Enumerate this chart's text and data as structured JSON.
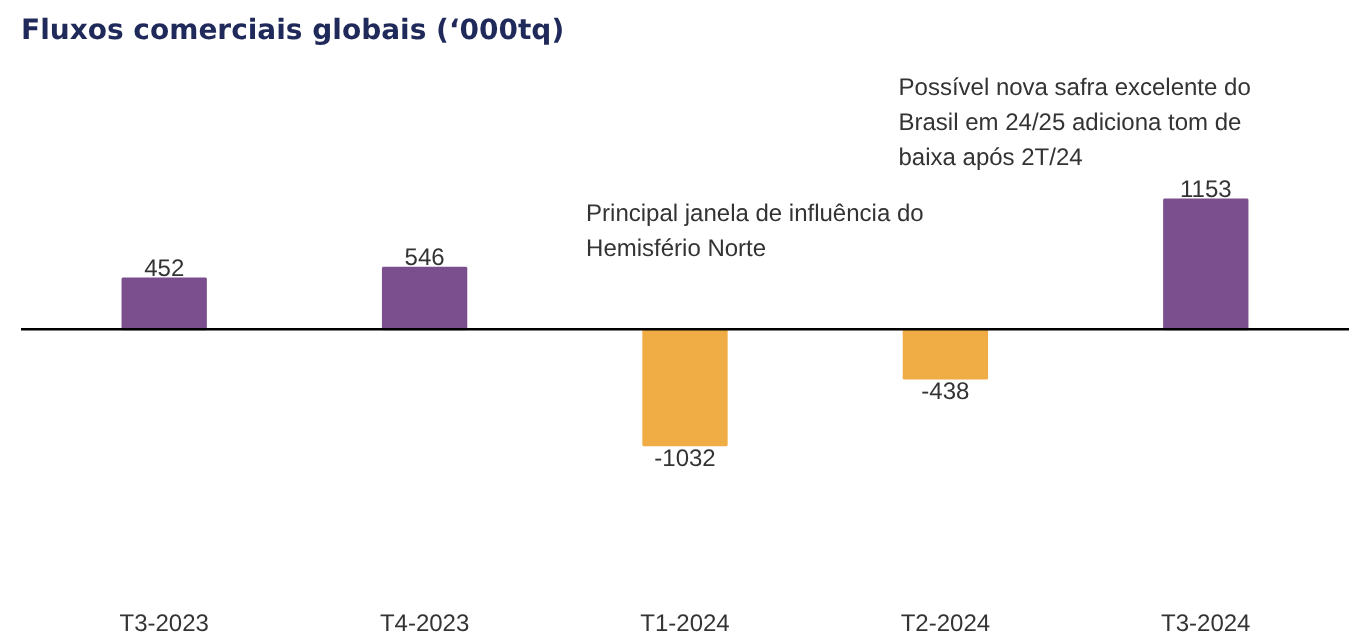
{
  "chart_data": {
    "type": "bar",
    "title": "Fluxos comerciais globais (‘000tq)",
    "categories": [
      "T3-2023",
      "T4-2023",
      "T1-2024",
      "T2-2024",
      "T3-2024"
    ],
    "values": [
      452,
      546,
      -1032,
      -438,
      1153
    ],
    "colors": [
      "#7b4f8e",
      "#7b4f8e",
      "#f0ac45",
      "#f0ac45",
      "#7b4f8e"
    ],
    "data_labels": true,
    "grid": false,
    "annotations": [
      "Principal janela de influência do\nHemisfério Norte",
      "Possível nova safra excelente do\nBrasil em 24/25 adiciona tom de\nbaixa após 2T/24"
    ]
  }
}
